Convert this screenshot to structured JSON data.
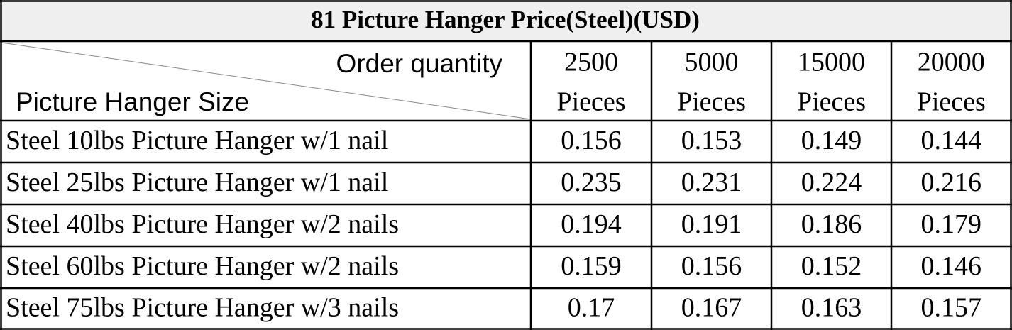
{
  "title": "81 Picture Hanger Price(Steel)(USD)",
  "header": {
    "corner_top": "Order quantity",
    "corner_bottom": "Picture Hanger Size",
    "columns": [
      {
        "qty": "2500",
        "unit": "Pieces"
      },
      {
        "qty": "5000",
        "unit": "Pieces"
      },
      {
        "qty": "15000",
        "unit": "Pieces"
      },
      {
        "qty": "20000",
        "unit": "Pieces"
      }
    ]
  },
  "rows": [
    {
      "label": "Steel 10lbs Picture Hanger w/1 nail",
      "prices": [
        "0.156",
        "0.153",
        "0.149",
        "0.144"
      ]
    },
    {
      "label": "Steel 25lbs Picture Hanger w/1 nail",
      "prices": [
        "0.235",
        "0.231",
        "0.224",
        "0.216"
      ]
    },
    {
      "label": "Steel 40lbs Picture Hanger w/2 nails",
      "prices": [
        "0.194",
        "0.191",
        "0.186",
        "0.179"
      ]
    },
    {
      "label": "Steel 60lbs Picture Hanger w/2 nails",
      "prices": [
        "0.159",
        "0.156",
        "0.152",
        "0.146"
      ]
    },
    {
      "label": "Steel 75lbs Picture Hanger w/3 nails",
      "prices": [
        "0.17",
        "0.167",
        "0.163",
        "0.157"
      ]
    }
  ]
}
